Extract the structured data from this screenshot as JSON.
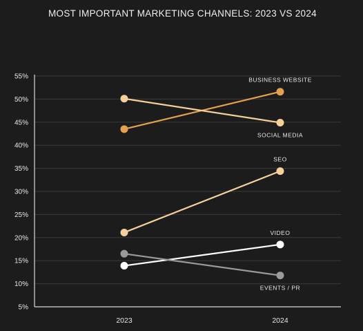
{
  "chart_data": {
    "type": "line",
    "title": "MOST IMPORTANT MARKETING CHANNELS: 2023 VS 2024",
    "categories": [
      "2023",
      "2024"
    ],
    "ylim": [
      5,
      55
    ],
    "yticks": [
      "5%",
      "10%",
      "15%",
      "20%",
      "25%",
      "30%",
      "35%",
      "40%",
      "45%",
      "50%",
      "55%"
    ],
    "grid": true,
    "series": [
      {
        "name": "BUSINESS WEBSITE",
        "values": [
          43.5,
          51.6
        ],
        "color": "#e5a24e"
      },
      {
        "name": "SOCIAL MEDIA",
        "values": [
          50.1,
          44.9
        ],
        "color": "#f7cf9a"
      },
      {
        "name": "SEO",
        "values": [
          21.1,
          34.4
        ],
        "color": "#f7cf9a"
      },
      {
        "name": "VIDEO",
        "values": [
          13.9,
          18.5
        ],
        "color": "#ffffff"
      },
      {
        "name": "EVENTS / PR",
        "values": [
          16.5,
          11.8
        ],
        "color": "#9a9a9a"
      }
    ]
  },
  "colors": {
    "background": "#1c1c1c",
    "grid": "#3a3a3a",
    "axis": "#d9d9d9",
    "text": "#e8e8e8"
  }
}
